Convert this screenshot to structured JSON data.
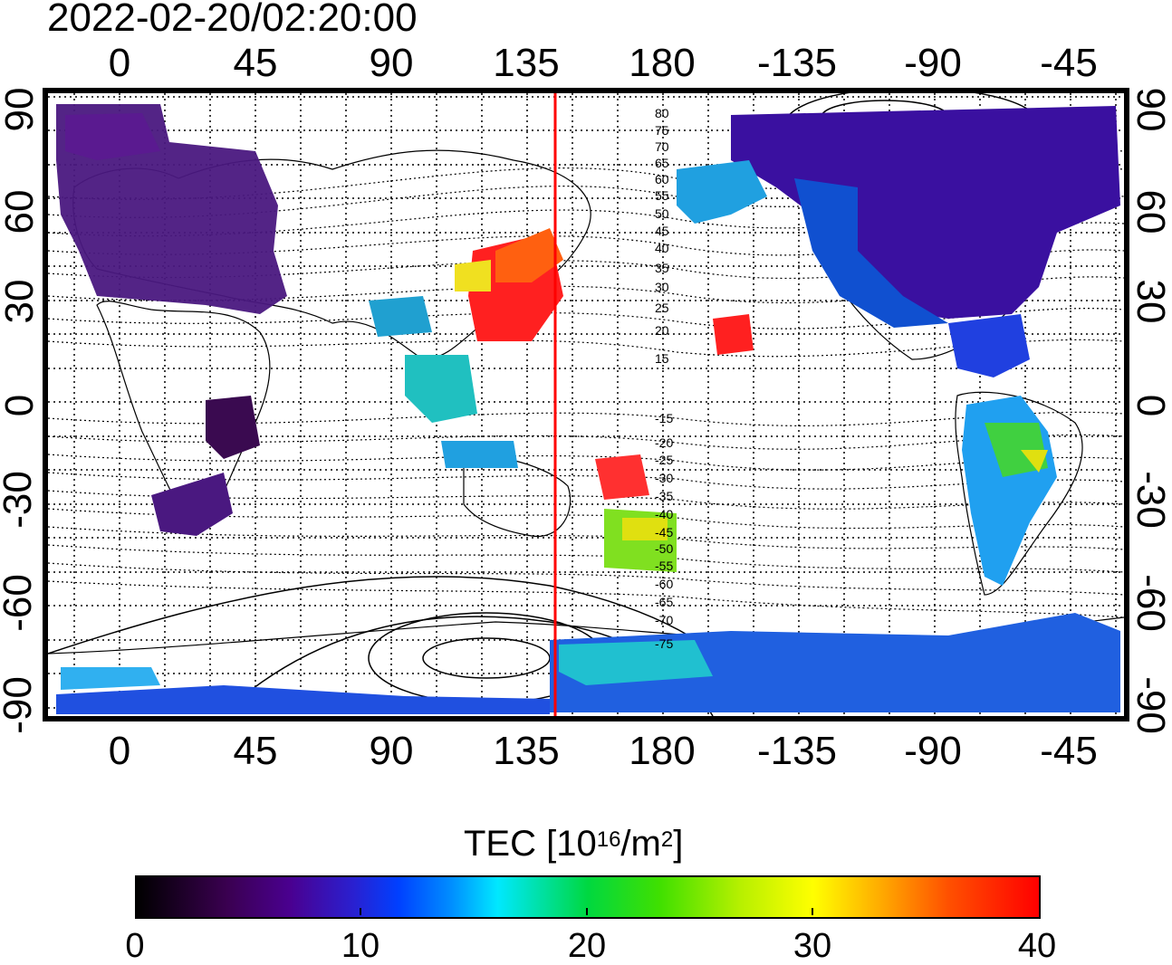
{
  "timestamp": "2022-02-20/02:20:00",
  "map": {
    "lon_ticks_top": [
      "0",
      "45",
      "90",
      "135",
      "180",
      "-135",
      "-90",
      "-45"
    ],
    "lon_ticks_bottom": [
      "0",
      "45",
      "90",
      "135",
      "180",
      "-135",
      "-90",
      "-45"
    ],
    "lat_ticks_left": [
      "90",
      "60",
      "30",
      "0",
      "-30",
      "-60",
      "-90"
    ],
    "lat_ticks_right": [
      "90",
      "60",
      "30",
      "0",
      "-30",
      "-60",
      "-90"
    ],
    "magnetic_latitude_labels": [
      "80",
      "75",
      "70",
      "65",
      "60",
      "55",
      "50",
      "45",
      "40",
      "35",
      "30",
      "25",
      "20",
      "15",
      "-15",
      "-20",
      "-25",
      "-30",
      "-35",
      "-40",
      "-45",
      "-50",
      "-55",
      "-60",
      "-65",
      "-70",
      "-75"
    ],
    "meridian_line_color": "#ff0000",
    "meridian_longitude": 145
  },
  "colorbar": {
    "title_prefix": "TEC  [10",
    "title_exp": "16",
    "title_mid": "/m",
    "title_exp2": "2",
    "title_suffix": "]",
    "tick_labels": [
      "0",
      "10",
      "20",
      "30",
      "40"
    ],
    "range": [
      0,
      40
    ]
  }
}
